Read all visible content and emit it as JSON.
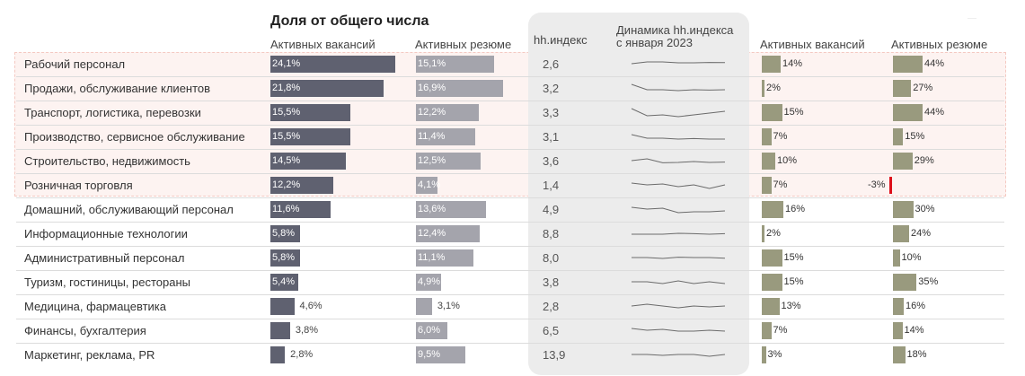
{
  "header": {
    "title": "Доля от общего числа",
    "col_vacancies": "Активных вакансий",
    "col_resumes": "Активных резюме",
    "col_hh": "hh.индекс",
    "col_dynamics_line1": "Динамика hh.индекса",
    "col_dynamics_line2": "с января 2023",
    "col_growth_vacancies": "Активных вакансий",
    "col_growth_resumes": "Активных резюме"
  },
  "colors": {
    "vacancies": "#5f6170",
    "resumes": "#a4a4ac",
    "growth": "#999a7e",
    "negative": "#dd0f1a",
    "highlight": "#fdf3f1",
    "panel": "#ececec"
  },
  "chart_data": {
    "type": "table",
    "title": "Доля от общего числа",
    "highlighted_rows": 6,
    "rows": [
      {
        "category": "Рабочий персонал",
        "vac_share": 24.1,
        "vac_label": "24,1%",
        "res_share": 15.1,
        "res_label": "15,1%",
        "hh_index": "2,6",
        "trend": [
          5,
          6,
          6,
          5.5,
          5.5,
          5.7,
          5.6
        ],
        "vac_growth": 14,
        "vac_growth_label": "14%",
        "res_growth": 44,
        "res_growth_label": "44%"
      },
      {
        "category": "Продажи, обслуживание клиентов",
        "vac_share": 21.8,
        "vac_label": "21,8%",
        "res_share": 16.9,
        "res_label": "16,9%",
        "hh_index": "3,2",
        "trend": [
          7,
          4,
          4,
          3.5,
          4,
          3.8,
          4
        ],
        "vac_growth": 2,
        "vac_growth_label": "2%",
        "res_growth": 27,
        "res_growth_label": "27%"
      },
      {
        "category": "Транспорт, логистика, перевозки",
        "vac_share": 15.5,
        "vac_label": "15,5%",
        "res_share": 12.2,
        "res_label": "12,2%",
        "hh_index": "3,3",
        "trend": [
          7,
          3,
          3.5,
          2.5,
          3.5,
          4.5,
          5.5
        ],
        "vac_growth": 15,
        "vac_growth_label": "15%",
        "res_growth": 44,
        "res_growth_label": "44%"
      },
      {
        "category": "Производство, сервисное обслуживание",
        "vac_share": 15.5,
        "vac_label": "15,5%",
        "res_share": 11.4,
        "res_label": "11,4%",
        "hh_index": "3,1",
        "trend": [
          6,
          4,
          4,
          3.5,
          3.8,
          3.5,
          3.5
        ],
        "vac_growth": 7,
        "vac_growth_label": "7%",
        "res_growth": 15,
        "res_growth_label": "15%"
      },
      {
        "category": "Строительство, недвижимость",
        "vac_share": 14.5,
        "vac_label": "14,5%",
        "res_share": 12.5,
        "res_label": "12,5%",
        "hh_index": "3,6",
        "trend": [
          5,
          6,
          3.8,
          4,
          4.5,
          4,
          4.2
        ],
        "vac_growth": 10,
        "vac_growth_label": "10%",
        "res_growth": 29,
        "res_growth_label": "29%"
      },
      {
        "category": "Розничная торговля",
        "vac_share": 12.2,
        "vac_label": "12,2%",
        "res_share": 4.1,
        "res_label": "4,1%",
        "hh_index": "1,4",
        "trend": [
          6,
          5,
          5.5,
          4,
          5,
          3,
          5
        ],
        "vac_growth": 7,
        "vac_growth_label": "7%",
        "res_growth": -3,
        "res_growth_label": "-3%"
      },
      {
        "category": "Домашний, обслуживающий персонал",
        "vac_share": 11.6,
        "vac_label": "11,6%",
        "res_share": 13.6,
        "res_label": "13,6%",
        "hh_index": "4,9",
        "trend": [
          6,
          5,
          5.5,
          3,
          3.5,
          3.5,
          4
        ],
        "vac_growth": 16,
        "vac_growth_label": "16%",
        "res_growth": 30,
        "res_growth_label": "30%"
      },
      {
        "category": "Информационные технологии",
        "vac_share": 5.8,
        "vac_label": "5,8%",
        "res_share": 12.4,
        "res_label": "12,4%",
        "hh_index": "8,8",
        "trend": [
          4.5,
          4.5,
          4.5,
          5,
          4.8,
          4.5,
          4.8
        ],
        "vac_growth": 2,
        "vac_growth_label": "2%",
        "res_growth": 24,
        "res_growth_label": "24%"
      },
      {
        "category": "Административный персонал",
        "vac_share": 5.8,
        "vac_label": "5,8%",
        "res_share": 11.1,
        "res_label": "11,1%",
        "hh_index": "8,0",
        "trend": [
          5,
          5,
          4.5,
          5.2,
          5,
          5,
          4.6
        ],
        "vac_growth": 15,
        "vac_growth_label": "15%",
        "res_growth": 10,
        "res_growth_label": "10%"
      },
      {
        "category": "Туризм, гостиницы, рестораны",
        "vac_share": 5.4,
        "vac_label": "5,4%",
        "res_share": 4.9,
        "res_label": "4,9%",
        "hh_index": "3,8",
        "trend": [
          5,
          5,
          4,
          5.5,
          4,
          5,
          4
        ],
        "vac_growth": 15,
        "vac_growth_label": "15%",
        "res_growth": 35,
        "res_growth_label": "35%"
      },
      {
        "category": "Медицина, фармацевтика",
        "vac_share": 4.6,
        "vac_label": "4,6%",
        "res_share": 3.1,
        "res_label": "3,1%",
        "hh_index": "2,8",
        "trend": [
          5,
          6,
          5,
          4,
          5,
          4.5,
          5
        ],
        "vac_growth": 13,
        "vac_growth_label": "13%",
        "res_growth": 16,
        "res_growth_label": "16%"
      },
      {
        "category": "Финансы, бухгалтерия",
        "vac_share": 3.8,
        "vac_label": "3,8%",
        "res_share": 6.0,
        "res_label": "6,0%",
        "hh_index": "6,5",
        "trend": [
          6,
          5,
          5.5,
          4.5,
          4.5,
          5,
          4.5
        ],
        "vac_growth": 7,
        "vac_growth_label": "7%",
        "res_growth": 14,
        "res_growth_label": "14%"
      },
      {
        "category": "Маркетинг, реклама, PR",
        "vac_share": 2.8,
        "vac_label": "2,8%",
        "res_share": 9.5,
        "res_label": "9,5%",
        "hh_index": "13,9",
        "trend": [
          5,
          5,
          4.5,
          5,
          5,
          4,
          5
        ],
        "vac_growth": 3,
        "vac_growth_label": "3%",
        "res_growth": 18,
        "res_growth_label": "18%"
      }
    ]
  }
}
